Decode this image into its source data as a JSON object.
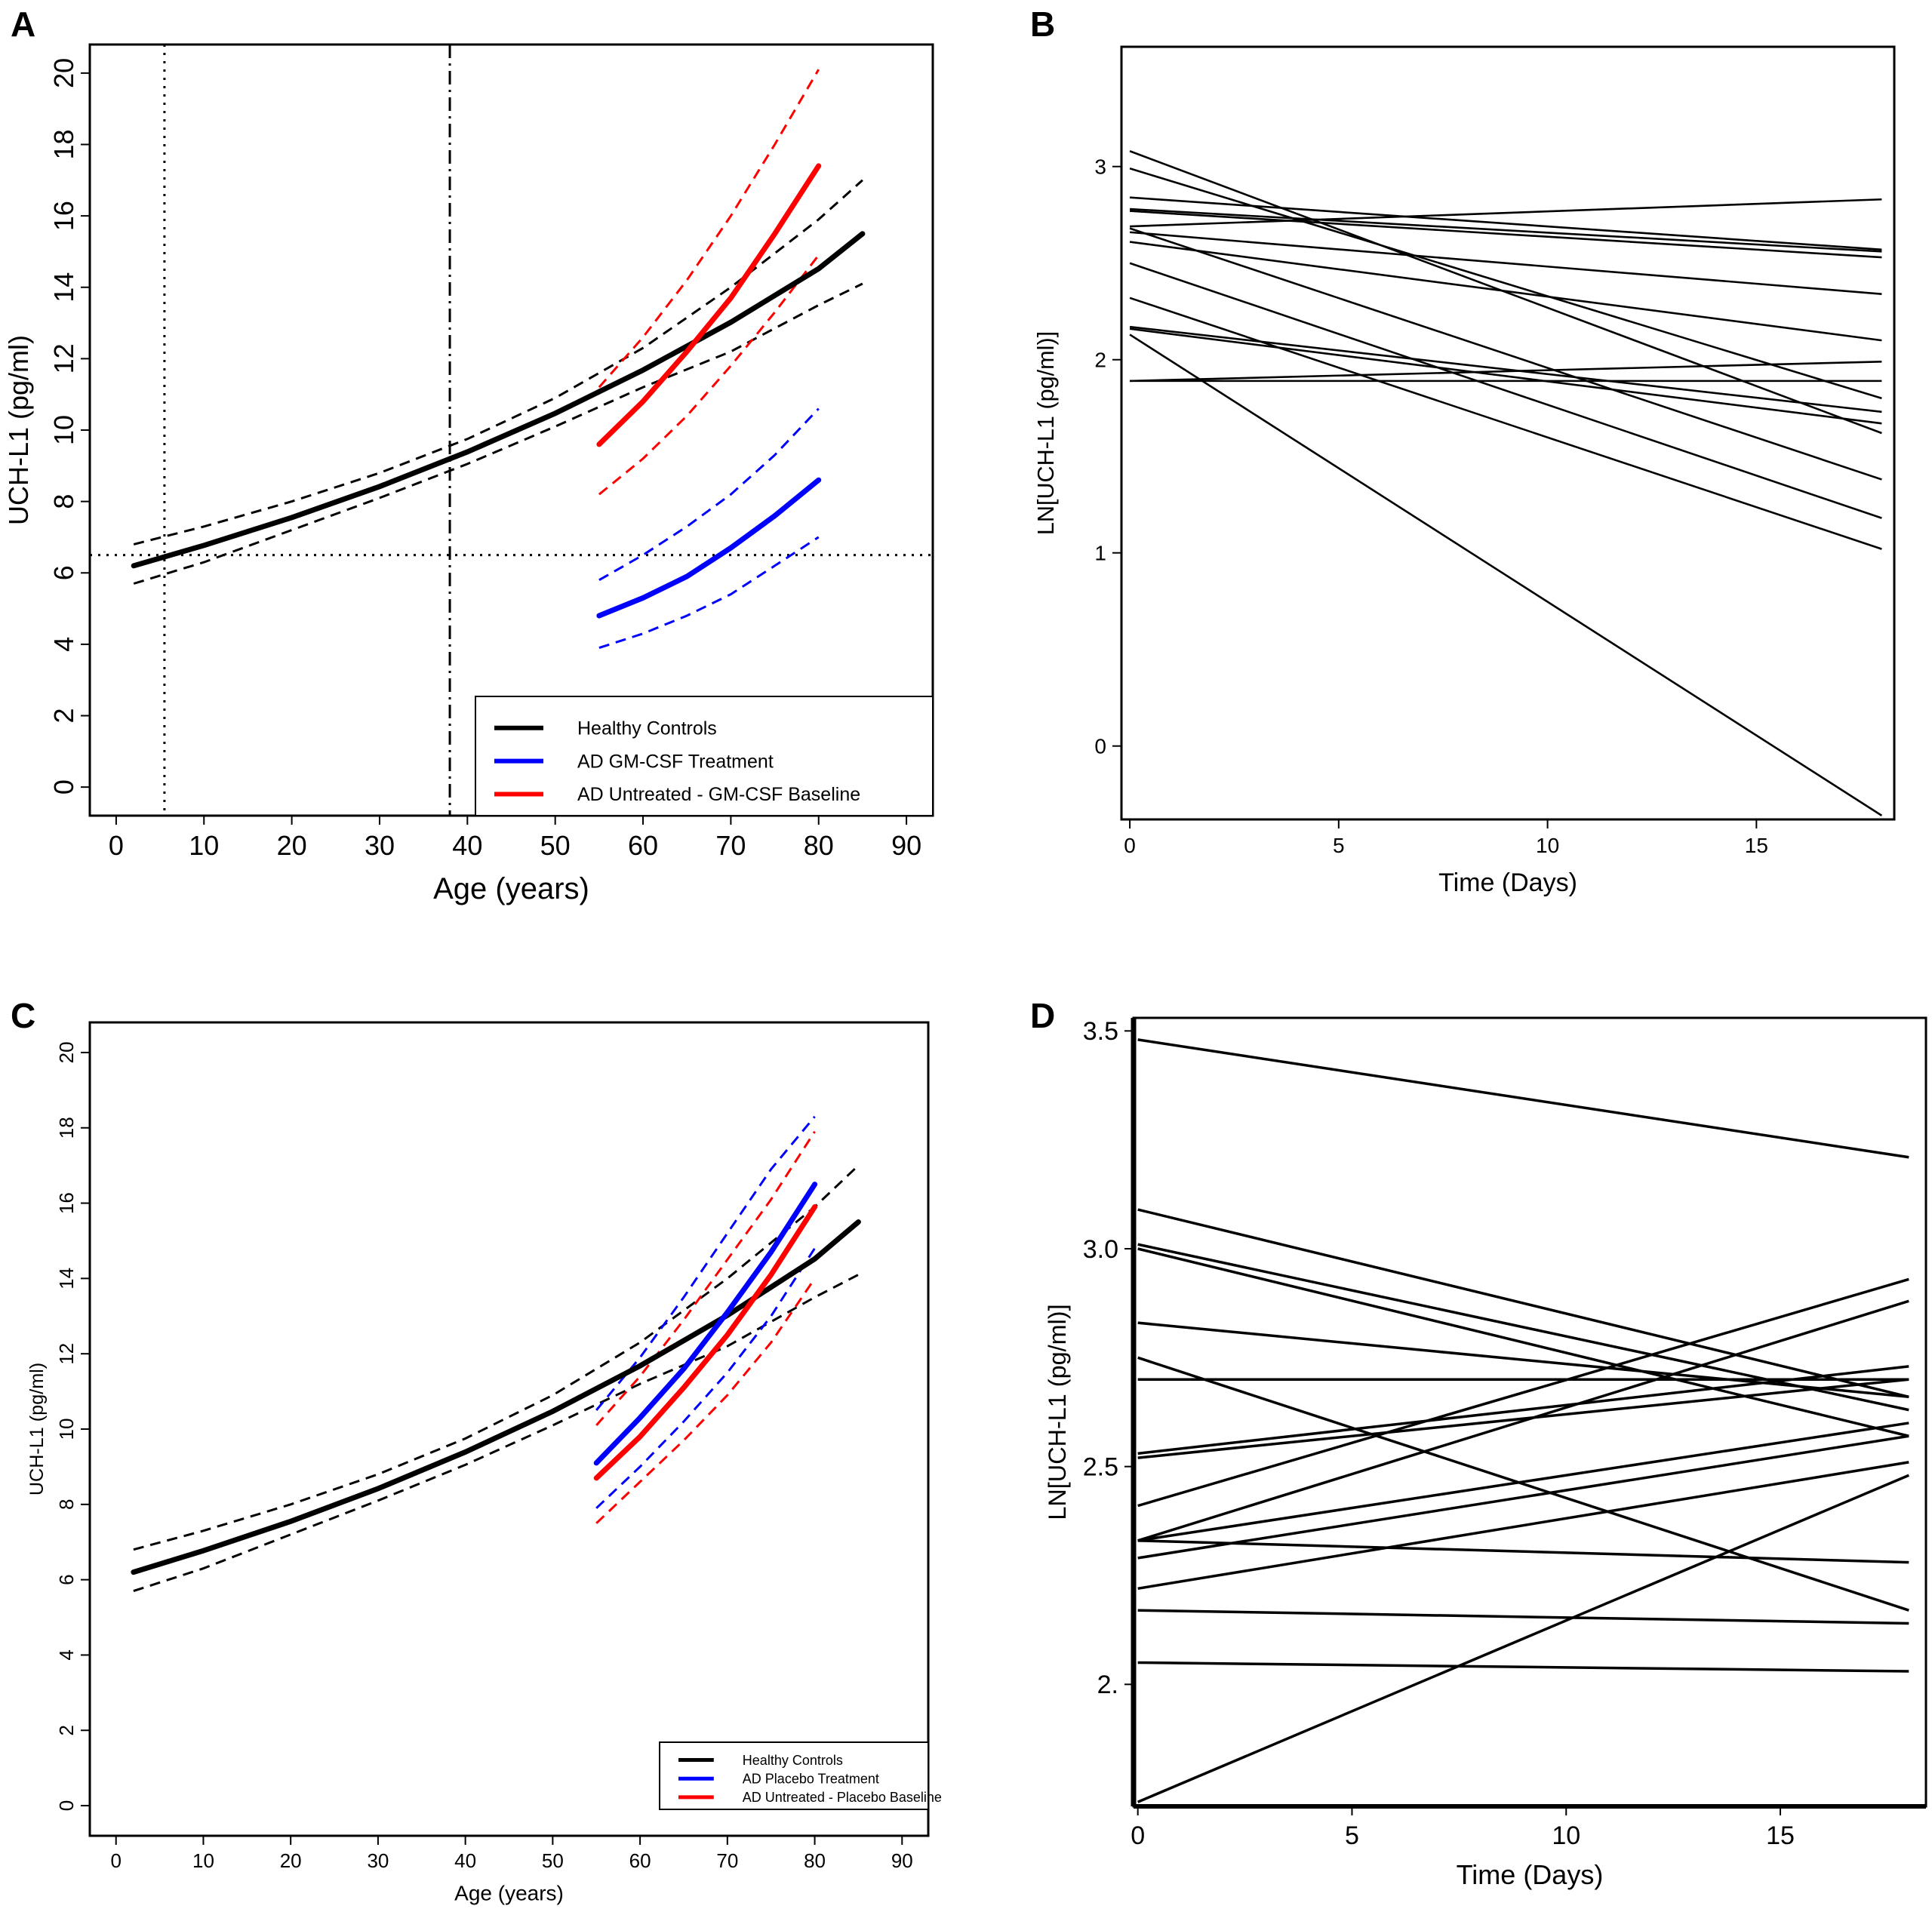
{
  "panel_letters": [
    "A",
    "B",
    "C",
    "D"
  ],
  "chart_data": [
    {
      "panel": "A",
      "type": "line",
      "xlabel": "Age (years)",
      "ylabel": "UCH-L1 (pg/ml)",
      "xlim": [
        -3,
        93
      ],
      "ylim": [
        -0.8,
        20.8
      ],
      "xticks": [
        0,
        10,
        20,
        30,
        40,
        50,
        60,
        70,
        80,
        90
      ],
      "yticks": [
        0,
        2,
        4,
        6,
        8,
        10,
        12,
        14,
        16,
        18,
        20
      ],
      "ytick_rotation": "vertical",
      "grid": false,
      "legend_position": "bottom-right",
      "reference_lines": [
        {
          "orientation": "vertical",
          "value": 5.5,
          "style": "dotted"
        },
        {
          "orientation": "vertical",
          "value": 38,
          "style": "dashdot"
        },
        {
          "orientation": "horizontal",
          "value": 6.5,
          "style": "dotted"
        }
      ],
      "series": [
        {
          "name": "Healthy Controls",
          "color": "#000000",
          "x": [
            2,
            10,
            20,
            30,
            40,
            50,
            60,
            70,
            80,
            85
          ],
          "y": [
            6.2,
            6.77,
            7.55,
            8.42,
            9.39,
            10.47,
            11.68,
            13.02,
            14.52,
            15.5
          ],
          "ci_upper": [
            6.8,
            7.3,
            8.0,
            8.8,
            9.75,
            10.9,
            12.3,
            14.0,
            15.9,
            17.0
          ],
          "ci_lower": [
            5.7,
            6.3,
            7.2,
            8.1,
            9.05,
            10.1,
            11.2,
            12.2,
            13.5,
            14.1
          ]
        },
        {
          "name": "AD GM-CSF Treatment",
          "color": "#0000ff",
          "x": [
            55,
            60,
            65,
            70,
            75,
            80
          ],
          "y": [
            4.8,
            5.3,
            5.9,
            6.7,
            7.6,
            8.6
          ],
          "ci_upper": [
            5.8,
            6.5,
            7.3,
            8.2,
            9.3,
            10.6
          ],
          "ci_lower": [
            3.9,
            4.3,
            4.8,
            5.4,
            6.2,
            7.0
          ]
        },
        {
          "name": "AD Untreated - GM-CSF Baseline",
          "color": "#ff0000",
          "x": [
            55,
            60,
            65,
            70,
            75,
            80
          ],
          "y": [
            9.6,
            10.8,
            12.2,
            13.7,
            15.5,
            17.4
          ],
          "ci_upper": [
            11.2,
            12.6,
            14.2,
            16.0,
            18.0,
            20.1
          ],
          "ci_lower": [
            8.2,
            9.2,
            10.4,
            11.8,
            13.3,
            14.9
          ]
        }
      ]
    },
    {
      "panel": "B",
      "type": "line",
      "xlabel": "Time (Days)",
      "ylabel": "LN[UCH-L1 (pg/ml)]",
      "xlim": [
        -0.2,
        18.3
      ],
      "ylim": [
        -0.38,
        3.62
      ],
      "xticks": [
        0,
        5,
        10,
        15
      ],
      "yticks": [
        0,
        1,
        2,
        3
      ],
      "ytick_labels": [
        "0",
        "1",
        "2",
        "3"
      ],
      "grid": false,
      "x": [
        0,
        18
      ],
      "subjects": [
        [
          3.08,
          1.62
        ],
        [
          2.99,
          1.8
        ],
        [
          2.84,
          2.57
        ],
        [
          2.78,
          2.56
        ],
        [
          2.77,
          2.53
        ],
        [
          2.69,
          2.83
        ],
        [
          2.66,
          2.34
        ],
        [
          2.61,
          2.1
        ],
        [
          2.68,
          1.38
        ],
        [
          2.5,
          1.18
        ],
        [
          2.32,
          1.02
        ],
        [
          2.17,
          1.73
        ],
        [
          2.16,
          1.67
        ],
        [
          2.13,
          -0.36
        ],
        [
          1.89,
          1.89
        ],
        [
          1.89,
          1.99
        ]
      ]
    },
    {
      "panel": "C",
      "type": "line",
      "xlabel": "Age (years)",
      "ylabel": "UCH-L1 (pg/ml)",
      "xlim": [
        -3,
        93
      ],
      "ylim": [
        -0.8,
        20.8
      ],
      "xticks": [
        0,
        10,
        20,
        30,
        40,
        50,
        60,
        70,
        80,
        90
      ],
      "yticks": [
        0,
        2,
        4,
        6,
        8,
        10,
        12,
        14,
        16,
        18,
        20
      ],
      "ytick_rotation": "vertical",
      "grid": false,
      "legend_position": "bottom-right",
      "series": [
        {
          "name": "Healthy Controls",
          "color": "#000000",
          "x": [
            2,
            10,
            20,
            30,
            40,
            50,
            60,
            70,
            80,
            85
          ],
          "y": [
            6.2,
            6.77,
            7.55,
            8.42,
            9.39,
            10.47,
            11.68,
            13.02,
            14.52,
            15.5
          ],
          "ci_upper": [
            6.8,
            7.3,
            8.0,
            8.8,
            9.75,
            10.9,
            12.3,
            14.0,
            15.9,
            17.0
          ],
          "ci_lower": [
            5.7,
            6.3,
            7.2,
            8.1,
            9.05,
            10.1,
            11.2,
            12.2,
            13.5,
            14.1
          ]
        },
        {
          "name": "AD Placebo Treatment",
          "color": "#0000ff",
          "x": [
            55,
            60,
            65,
            70,
            75,
            80
          ],
          "y": [
            9.1,
            10.3,
            11.6,
            13.1,
            14.7,
            16.5
          ],
          "ci_upper": [
            10.5,
            11.9,
            13.5,
            15.2,
            16.9,
            18.3
          ],
          "ci_lower": [
            7.9,
            9.0,
            10.2,
            11.5,
            13.0,
            14.8
          ]
        },
        {
          "name": "AD Untreated - Placebo Baseline",
          "color": "#ff0000",
          "x": [
            55,
            60,
            65,
            70,
            75,
            80
          ],
          "y": [
            8.7,
            9.8,
            11.1,
            12.5,
            14.1,
            15.9
          ],
          "ci_upper": [
            10.1,
            11.4,
            12.9,
            14.5,
            16.1,
            17.9
          ],
          "ci_lower": [
            7.5,
            8.6,
            9.7,
            10.9,
            12.3,
            14.0
          ]
        }
      ]
    },
    {
      "panel": "D",
      "type": "line",
      "xlabel": "Time (Days)",
      "ylabel": "LN[UCH-L1 (pg/ml)]",
      "xlim": [
        -0.1,
        18.4
      ],
      "ylim": [
        1.72,
        3.53
      ],
      "xticks": [
        0,
        5,
        10,
        15
      ],
      "yticks": [
        2.0,
        2.5,
        3.0,
        3.5
      ],
      "ytick_labels": [
        "2.",
        "2.5",
        "3.0",
        "3.5"
      ],
      "grid": false,
      "x": [
        0,
        18
      ],
      "subjects": [
        [
          3.48,
          3.21
        ],
        [
          3.09,
          2.66
        ],
        [
          3.01,
          2.63
        ],
        [
          3.0,
          2.57
        ],
        [
          2.83,
          2.66
        ],
        [
          2.75,
          2.17
        ],
        [
          2.7,
          2.7
        ],
        [
          2.53,
          2.73
        ],
        [
          2.52,
          2.7
        ],
        [
          2.41,
          2.93
        ],
        [
          2.33,
          2.88
        ],
        [
          2.33,
          2.6
        ],
        [
          2.33,
          2.28
        ],
        [
          2.29,
          2.57
        ],
        [
          2.22,
          2.51
        ],
        [
          2.17,
          2.14
        ],
        [
          2.05,
          2.03
        ],
        [
          1.73,
          2.48
        ]
      ]
    }
  ]
}
